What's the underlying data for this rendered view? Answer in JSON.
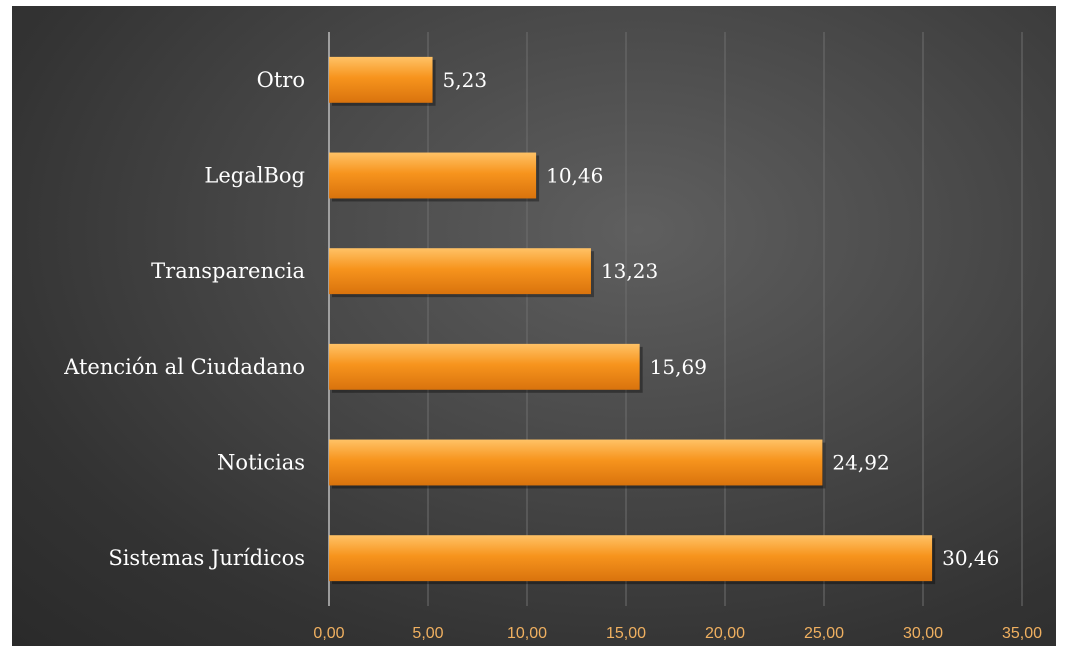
{
  "colors": {
    "bar": "#f7941d",
    "bar_highlight": "#ffc266",
    "bar_shadow": "#d9730d",
    "grid": "#6e6e6e",
    "axis": "#bdbdbd",
    "tick_label": "#f0b060",
    "text": "#ffffff"
  },
  "chart_data": {
    "type": "bar",
    "orientation": "horizontal",
    "categories": [
      "Otro",
      "LegalBog",
      "Transparencia",
      "Atención al Ciudadano",
      "Noticias",
      "Sistemas Jurídicos"
    ],
    "values": [
      5.23,
      10.46,
      13.23,
      15.69,
      24.92,
      30.46
    ],
    "value_labels": [
      "5,23",
      "10,46",
      "13,23",
      "15,69",
      "24,92",
      "30,46"
    ],
    "xlim": [
      0,
      35
    ],
    "xticks": [
      0,
      5,
      10,
      15,
      20,
      25,
      30,
      35
    ],
    "xtick_labels": [
      "0,00",
      "5,00",
      "10,00",
      "15,00",
      "20,00",
      "25,00",
      "30,00",
      "35,00"
    ],
    "grid": true,
    "legend": false
  }
}
